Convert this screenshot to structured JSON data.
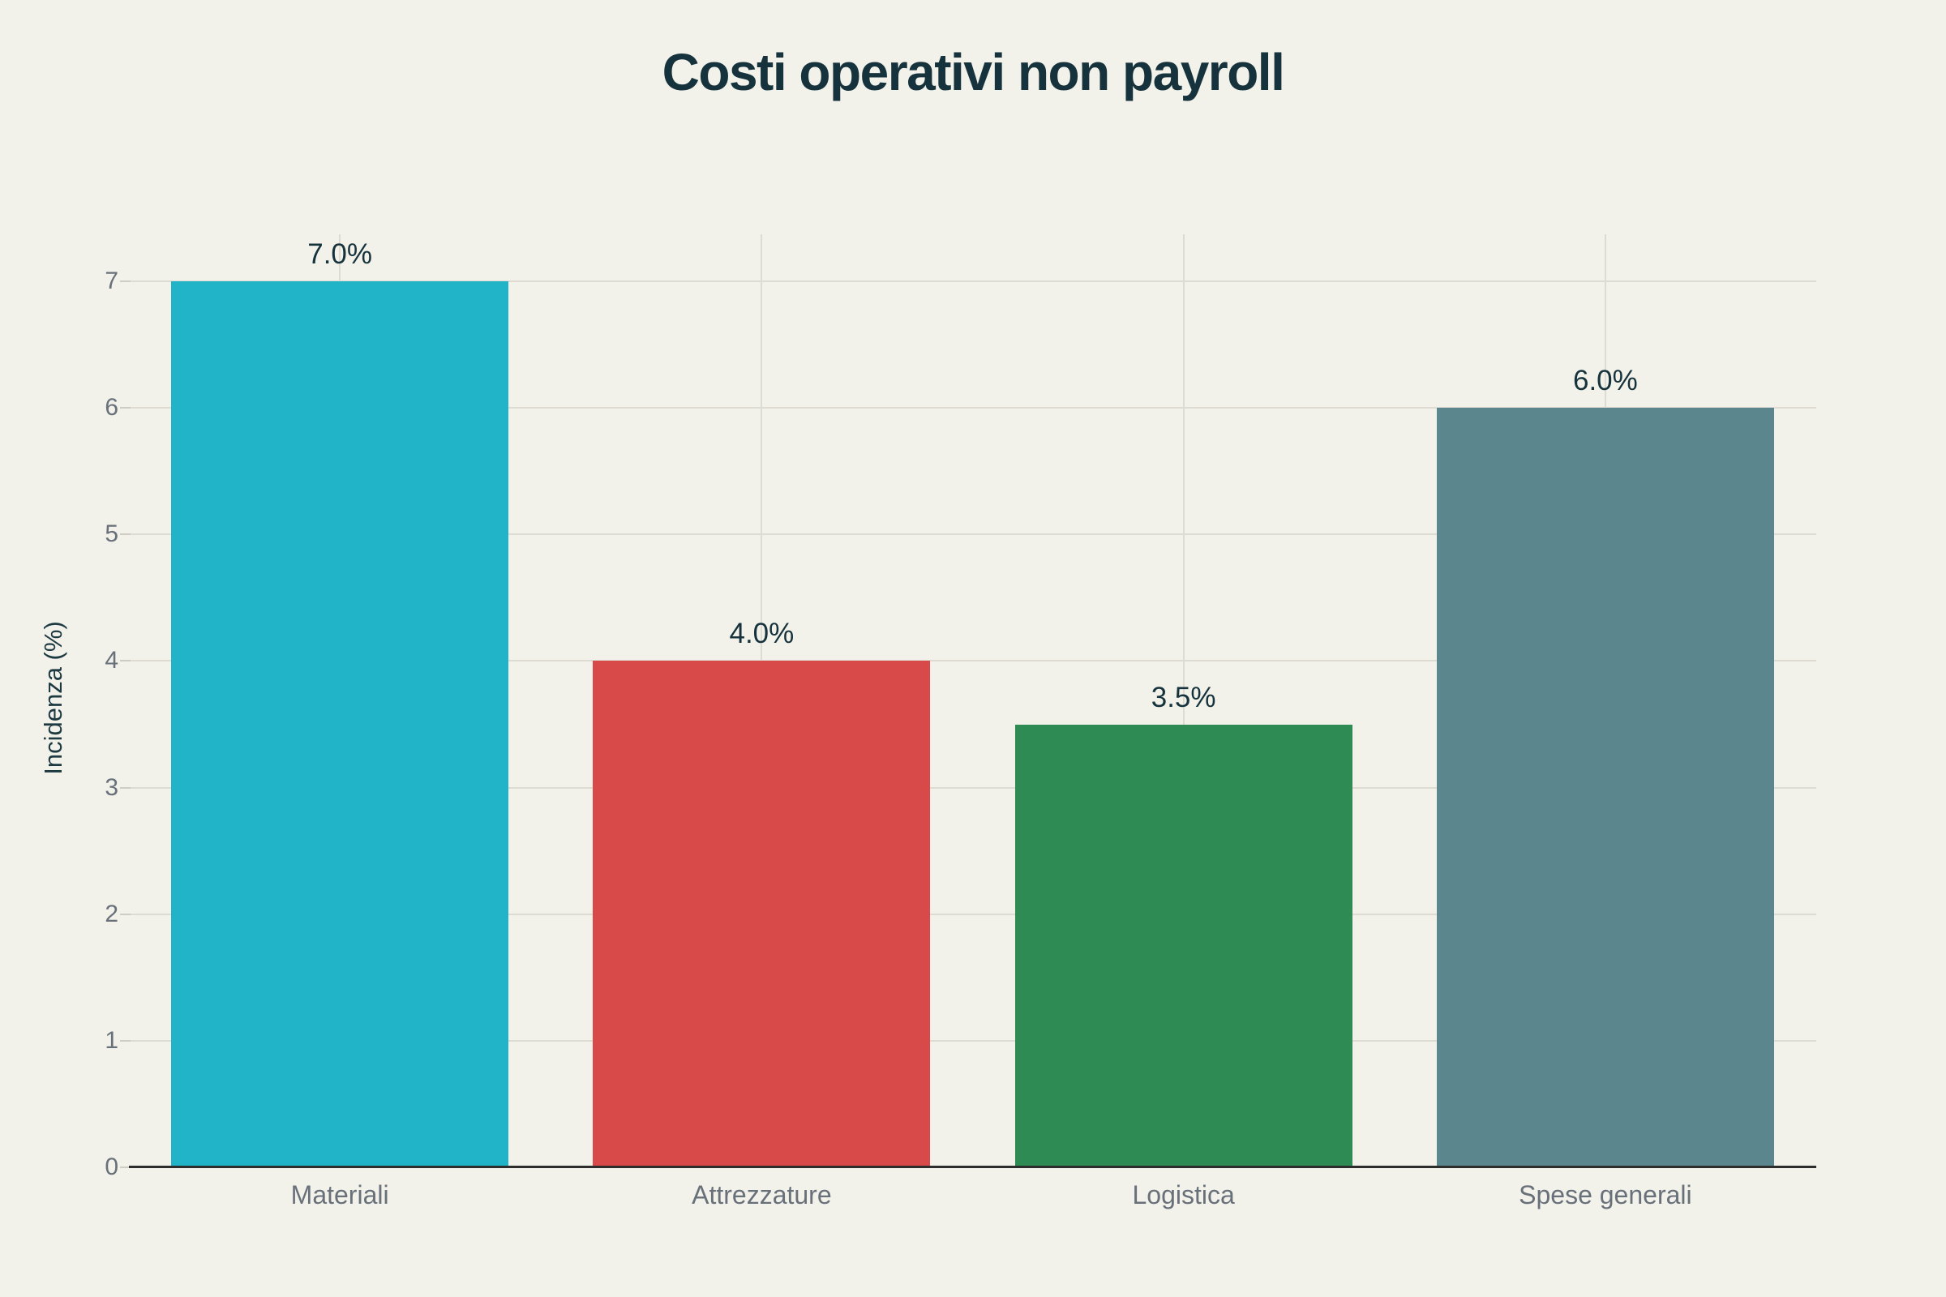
{
  "chart_data": {
    "type": "bar",
    "title": "Costi operativi non payroll",
    "xlabel": "",
    "ylabel": "Incidenza (%)",
    "categories": [
      "Materiali",
      "Attrezzature",
      "Logistica",
      "Spese generali"
    ],
    "values": [
      7.0,
      4.0,
      3.5,
      6.0
    ],
    "value_labels": [
      "7.0%",
      "4.0%",
      "3.5%",
      "6.0%"
    ],
    "bar_colors": [
      "#21b4c9",
      "#d84a4a",
      "#2e8b53",
      "#5b868d"
    ],
    "ylim": [
      0,
      7.4
    ],
    "yticks": [
      0,
      1,
      2,
      3,
      4,
      5,
      6,
      7
    ],
    "grid": "on",
    "legend": "none"
  },
  "style": {
    "background_color": "#f2f1ea",
    "gridline_color": "#dddbd2",
    "axis_line_color": "#2d2d2d",
    "title_color": "#16333d",
    "value_label_color": "#16333d",
    "tick_label_color": "#68707a"
  }
}
